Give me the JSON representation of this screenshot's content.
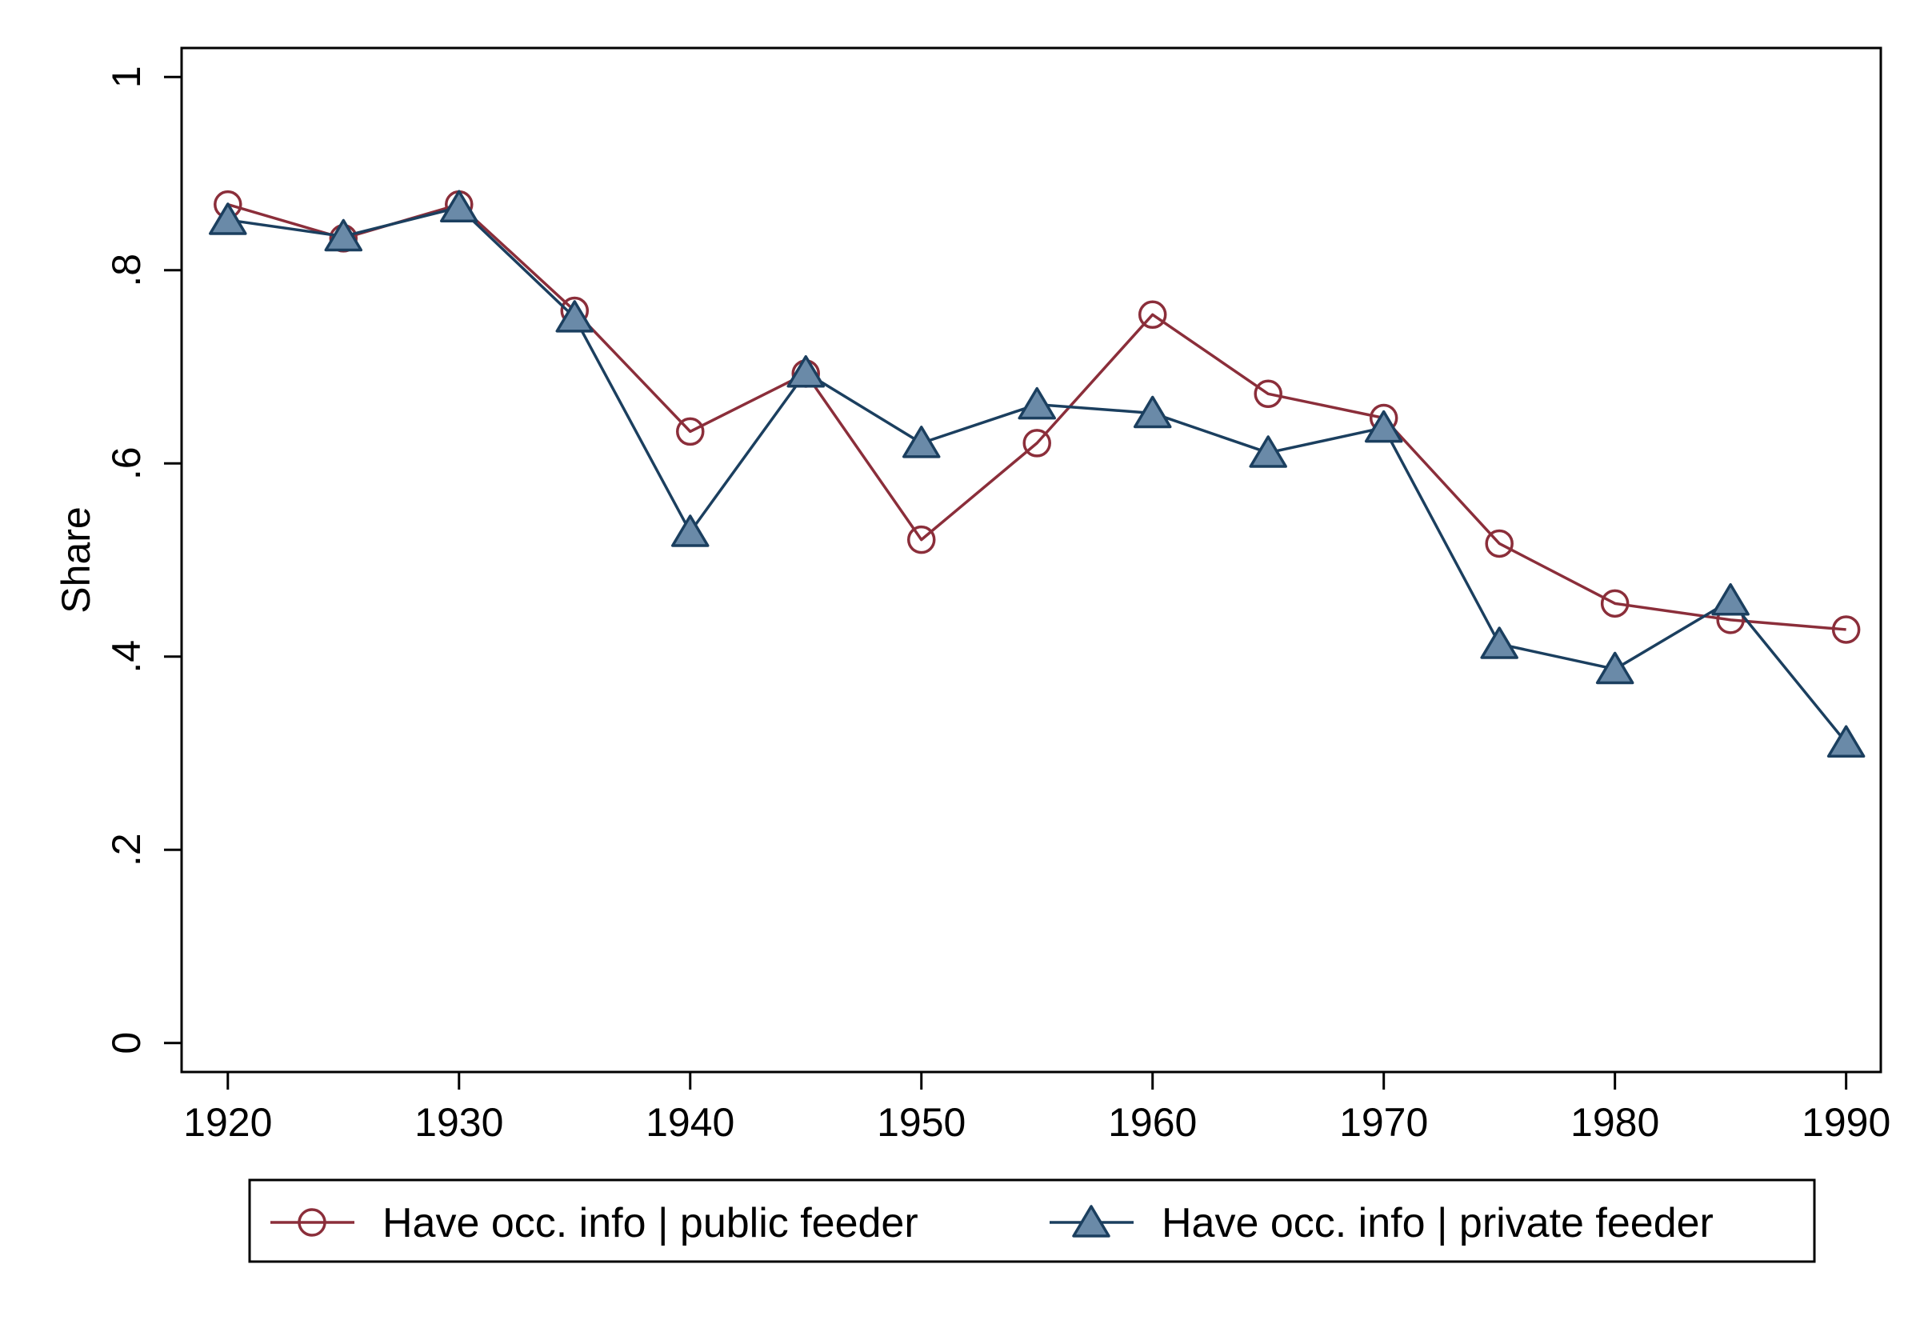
{
  "chart_data": {
    "type": "line",
    "title": "",
    "xlabel": "",
    "ylabel": "Share",
    "xlim": [
      1918,
      1991.5
    ],
    "ylim": [
      -0.03,
      1.03
    ],
    "xticks": [
      1920,
      1930,
      1940,
      1950,
      1960,
      1970,
      1980,
      1990
    ],
    "xtick_labels": [
      "1920",
      "1930",
      "1940",
      "1950",
      "1960",
      "1970",
      "1980",
      "1990"
    ],
    "yticks": [
      0,
      0.2,
      0.4,
      0.6,
      0.8,
      1
    ],
    "ytick_labels": [
      "0",
      ".2",
      ".4",
      ".6",
      ".8",
      "1"
    ],
    "grid": false,
    "legend_position": "bottom",
    "x": [
      1920,
      1925,
      1930,
      1935,
      1940,
      1945,
      1950,
      1955,
      1960,
      1965,
      1970,
      1975,
      1980,
      1985,
      1990
    ],
    "series": [
      {
        "name": "Have occ. info | public feeder",
        "marker": "circle",
        "color": "#8b2e3a",
        "values": [
          0.868,
          0.833,
          0.868,
          0.758,
          0.633,
          0.693,
          0.521,
          0.621,
          0.754,
          0.672,
          0.647,
          0.517,
          0.455,
          0.438,
          0.428
        ]
      },
      {
        "name": "Have occ. info | private feeder",
        "marker": "triangle",
        "color": "#1b3f5f",
        "fill": "#6a8aa8",
        "values": [
          0.852,
          0.835,
          0.865,
          0.751,
          0.529,
          0.694,
          0.621,
          0.661,
          0.652,
          0.611,
          0.637,
          0.413,
          0.387,
          0.458,
          0.311
        ]
      }
    ]
  }
}
